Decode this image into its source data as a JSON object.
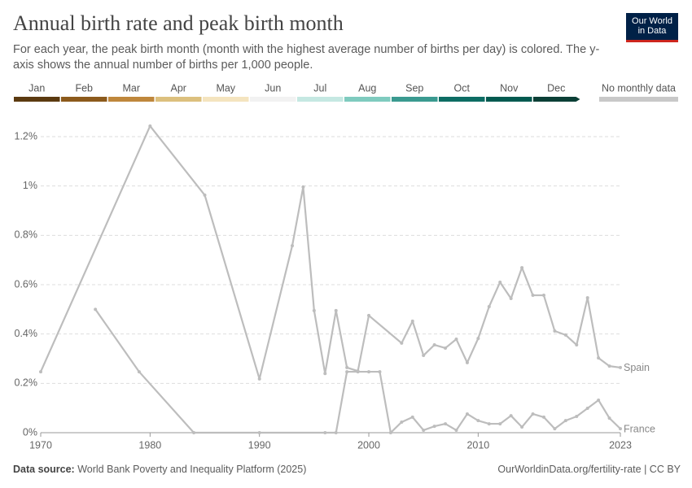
{
  "chart_data": {
    "type": "line",
    "title": "Annual birth rate and peak birth month",
    "subtitle": "For each year, the peak birth month (month with the highest average number of births per day) is colored. The y-axis shows the annual number of births per 1,000 people.",
    "logo": [
      "Our World",
      "in Data"
    ],
    "source": {
      "label": "Data source:",
      "text": "World Bank Poverty and Inequality Platform (2025)"
    },
    "url": "OurWorldinData.org/fertility-rate | CC BY",
    "color_legend": [
      {
        "name": "Jan",
        "color": "#5b3a10"
      },
      {
        "name": "Feb",
        "color": "#8c5a1c"
      },
      {
        "name": "Mar",
        "color": "#bf873c"
      },
      {
        "name": "Apr",
        "color": "#dcc07e"
      },
      {
        "name": "May",
        "color": "#f4e4bf"
      },
      {
        "name": "Jun",
        "color": "#f2f2f2"
      },
      {
        "name": "Jul",
        "color": "#c5e8e2"
      },
      {
        "name": "Aug",
        "color": "#7fcbbf"
      },
      {
        "name": "Sep",
        "color": "#3a9a90"
      },
      {
        "name": "Oct",
        "color": "#0d6d64"
      },
      {
        "name": "Nov",
        "color": "#035a50"
      },
      {
        "name": "Dec",
        "color": "#0b3f36"
      },
      {
        "name": "No monthly data",
        "color": "#c8c8c8"
      }
    ],
    "xlim": [
      1970,
      2023
    ],
    "xticks": [
      1970,
      1980,
      1990,
      2000,
      2010,
      2023
    ],
    "ylim": [
      0,
      1.2
    ],
    "yticks": [
      {
        "value": 0,
        "label": "0%"
      },
      {
        "value": 0.2,
        "label": "0.2%"
      },
      {
        "value": 0.4,
        "label": "0.4%"
      },
      {
        "value": 0.6,
        "label": "0.6%"
      },
      {
        "value": 0.8,
        "label": "0.8%"
      },
      {
        "value": 1,
        "label": "1%"
      },
      {
        "value": 1.2,
        "label": "1.2%"
      }
    ],
    "grid": true,
    "series": [
      {
        "name": "Spain",
        "color": "#bdbdbd",
        "x": [
          1970,
          1980,
          1985,
          1990,
          1993,
          1994,
          1995,
          1996,
          1997,
          1998,
          1999,
          2000,
          2003,
          2004,
          2005,
          2006,
          2007,
          2008,
          2009,
          2010,
          2011,
          2012,
          2013,
          2014,
          2015,
          2016,
          2017,
          2018,
          2019,
          2020,
          2021,
          2022,
          2023
        ],
        "values": [
          0.247,
          1.243,
          0.963,
          0.218,
          0.758,
          0.996,
          0.495,
          0.24,
          0.495,
          0.264,
          0.25,
          0.475,
          0.363,
          0.452,
          0.313,
          0.356,
          0.343,
          0.379,
          0.284,
          0.382,
          0.511,
          0.61,
          0.544,
          0.669,
          0.557,
          0.557,
          0.412,
          0.396,
          0.356,
          0.547,
          0.303,
          0.27,
          0.264
        ]
      },
      {
        "name": "France",
        "color": "#bdbdbd",
        "x": [
          1975,
          1979,
          1984,
          1990,
          1996,
          1997,
          1998,
          1999,
          2000,
          2001,
          2002,
          2003,
          2004,
          2005,
          2006,
          2007,
          2008,
          2009,
          2010,
          2011,
          2012,
          2013,
          2014,
          2015,
          2016,
          2017,
          2018,
          2019,
          2020,
          2021,
          2022,
          2023
        ],
        "values": [
          0.5,
          0.247,
          0,
          0,
          0,
          0,
          0.247,
          0.247,
          0.247,
          0.247,
          0,
          0.043,
          0.063,
          0.01,
          0.026,
          0.036,
          0.01,
          0.076,
          0.049,
          0.036,
          0.036,
          0.069,
          0.023,
          0.076,
          0.063,
          0.016,
          0.049,
          0.066,
          0.099,
          0.132,
          0.059,
          0.016
        ]
      }
    ]
  }
}
